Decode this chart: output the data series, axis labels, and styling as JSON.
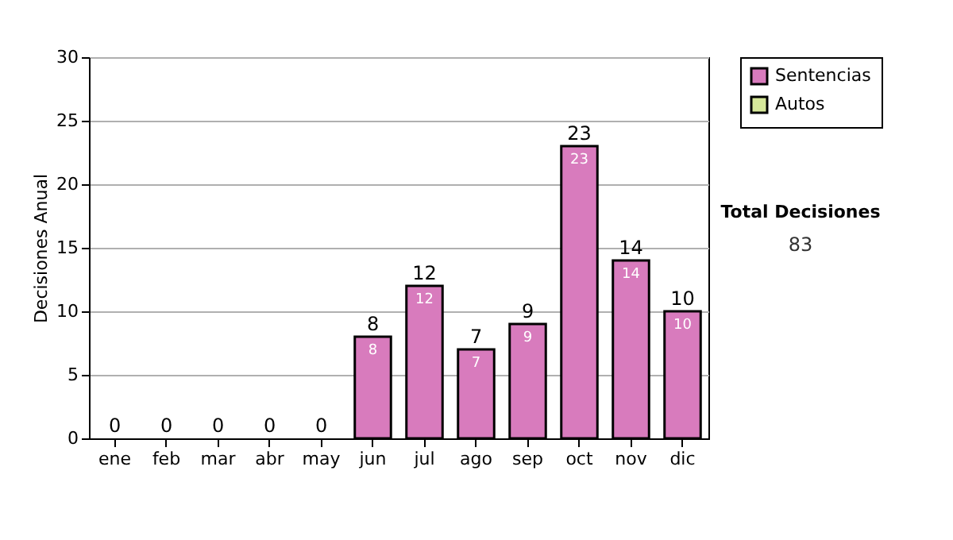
{
  "chart_data": {
    "type": "bar",
    "stacked": true,
    "ylabel": "Decisiones Anual",
    "categories": [
      "ene",
      "feb",
      "mar",
      "abr",
      "may",
      "jun",
      "jul",
      "ago",
      "sep",
      "oct",
      "nov",
      "dic"
    ],
    "series": [
      {
        "name": "Sentencias",
        "color": "#d87bbd",
        "values": [
          0,
          0,
          0,
          0,
          0,
          8,
          12,
          7,
          9,
          23,
          14,
          10
        ],
        "value_labels": [
          null,
          null,
          null,
          null,
          null,
          "8",
          "12",
          "7",
          "9",
          "23",
          "14",
          "10"
        ]
      },
      {
        "name": "Autos",
        "color": "#d6e89a",
        "values": [
          0,
          0,
          0,
          0,
          0,
          0,
          0,
          0,
          0,
          0,
          0,
          0
        ]
      }
    ],
    "totals": [
      "0",
      "0",
      "0",
      "0",
      "0",
      "8",
      "12",
      "7",
      "9",
      "23",
      "14",
      "10"
    ],
    "ylim": [
      0,
      30
    ],
    "yticks": [
      0,
      5,
      10,
      15,
      20,
      25,
      30
    ],
    "grid": "y",
    "legend": "right",
    "annotations": [
      "Total Decisiones",
      "83"
    ]
  }
}
